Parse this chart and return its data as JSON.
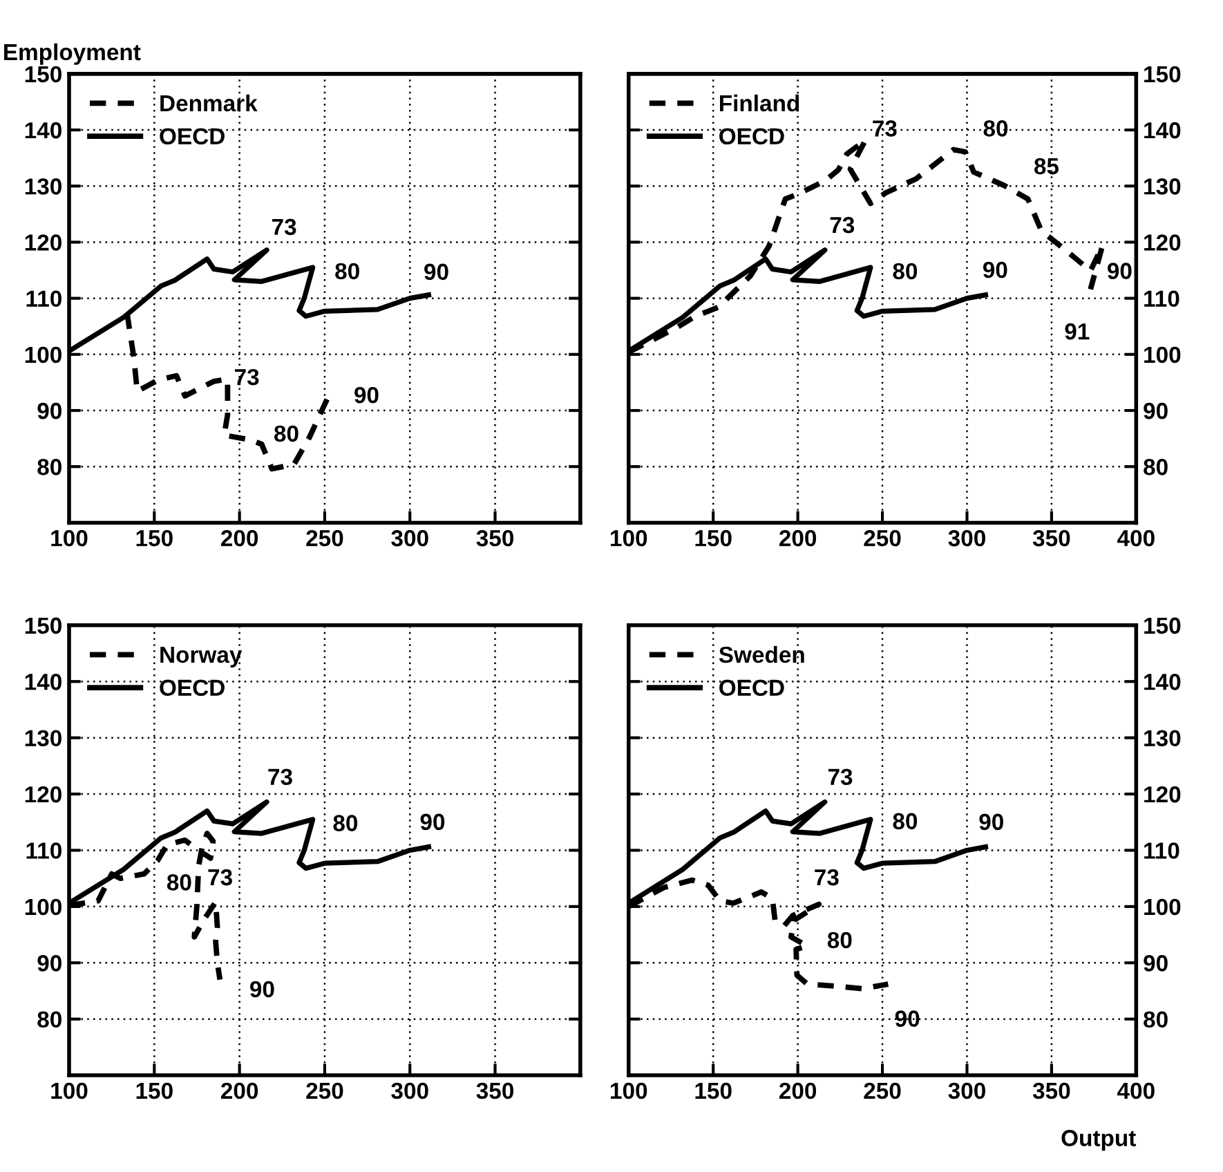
{
  "chart_data": [
    {
      "type": "line",
      "ylabel": "Employment",
      "xlim": [
        100,
        400
      ],
      "ylim": [
        70,
        150
      ],
      "xticks": [
        100,
        150,
        200,
        250,
        300,
        350
      ],
      "yticks": [
        80,
        90,
        100,
        110,
        120,
        130,
        140,
        150
      ],
      "grid": true,
      "legend": "top left",
      "series": [
        {
          "name": "Denmark",
          "color": "#000000",
          "line_style": "dashed",
          "x": [
            134,
            138,
            140,
            152,
            163,
            168,
            185,
            193,
            193,
            191,
            206,
            213,
            219,
            232,
            241,
            252
          ],
          "values": [
            107.4,
            99.4,
            93.4,
            95.4,
            96.2,
            92.6,
            95.2,
            95.6,
            89.2,
            85.6,
            84.8,
            84,
            79.6,
            80.4,
            85.2,
            92.4
          ]
        },
        {
          "name": "OECD",
          "color": "#000000",
          "line_style": "solid",
          "x": [
            100,
            132,
            154,
            162,
            181,
            185,
            196,
            216,
            197,
            213,
            237,
            243,
            238,
            235,
            239,
            250,
            281,
            300,
            311
          ],
          "values": [
            100.6,
            106.6,
            112.2,
            113.2,
            117,
            115.2,
            114.7,
            118.6,
            113.3,
            113,
            115,
            115.5,
            110,
            107.8,
            106.8,
            107.7,
            108,
            110,
            110.6
          ]
        }
      ],
      "annotations": [
        {
          "text": "73",
          "x": 216,
          "y": 118.6
        },
        {
          "text": "80",
          "x": 243,
          "y": 115.5
        },
        {
          "text": "90",
          "x": 311,
          "y": 110.6
        },
        {
          "text": "73",
          "x": 193,
          "y": 95.6
        },
        {
          "text": "80",
          "x": 232,
          "y": 80.4
        },
        {
          "text": "90",
          "x": 252,
          "y": 92.4
        }
      ]
    },
    {
      "type": "line",
      "xlim": [
        100,
        400
      ],
      "ylim": [
        70,
        150
      ],
      "xticks": [
        100,
        150,
        200,
        250,
        300,
        350,
        400
      ],
      "yticks": [
        80,
        90,
        100,
        110,
        120,
        130,
        140,
        150
      ],
      "grid": true,
      "legend": "top left",
      "series": [
        {
          "name": "Finland",
          "color": "#000000",
          "line_style": "dashed",
          "x": [
            100,
            128.6,
            139.5,
            153,
            172,
            183,
            192.6,
            199.5,
            216,
            224,
            229,
            240,
            231,
            243,
            252,
            270,
            292,
            299,
            304,
            322,
            336,
            344,
            357,
            373,
            380,
            373
          ],
          "values": [
            100.4,
            104.8,
            106.8,
            108.4,
            114,
            119.3,
            127.7,
            128.5,
            130.9,
            132.9,
            135.7,
            138.2,
            133,
            126.9,
            128.8,
            131.3,
            136.5,
            136.1,
            132.5,
            130.1,
            127.7,
            122,
            118.9,
            114.9,
            119.3,
            111.6
          ]
        },
        {
          "name": "OECD",
          "color": "#000000",
          "line_style": "solid",
          "x": [
            100,
            132,
            154,
            162,
            181,
            185,
            196,
            216,
            197,
            213,
            237,
            243,
            238,
            235,
            239,
            250,
            281,
            300,
            311
          ],
          "values": [
            100.6,
            106.6,
            112.2,
            113.2,
            117,
            115.2,
            114.7,
            118.6,
            113.3,
            113,
            115,
            115.5,
            110,
            107.8,
            106.8,
            107.7,
            108,
            110,
            110.6
          ]
        }
      ],
      "annotations": [
        {
          "text": "73",
          "x": 216,
          "y": 118.6
        },
        {
          "text": "80",
          "x": 243,
          "y": 115.5
        },
        {
          "text": "90",
          "x": 311,
          "y": 110.6
        },
        {
          "text": "73",
          "x": 240,
          "y": 138.2
        },
        {
          "text": "80",
          "x": 292,
          "y": 136.5
        },
        {
          "text": "85",
          "x": 322,
          "y": 130.1
        },
        {
          "text": "90",
          "x": 380,
          "y": 119.3
        },
        {
          "text": "91",
          "x": 373,
          "y": 111.6
        }
      ]
    },
    {
      "type": "line",
      "xlim": [
        100,
        400
      ],
      "ylim": [
        70,
        150
      ],
      "xticks": [
        100,
        150,
        200,
        250,
        300,
        350
      ],
      "yticks": [
        80,
        90,
        100,
        110,
        120,
        130,
        140,
        150
      ],
      "grid": true,
      "legend": "top left",
      "series": [
        {
          "name": "Norway",
          "color": "#000000",
          "line_style": "dashed",
          "x": [
            100,
            117,
            125,
            130,
            144,
            152,
            157.5,
            168,
            176,
            183,
            184.5,
            181,
            178,
            176,
            175,
            173.5,
            179,
            186,
            187,
            186,
            187,
            188.5
          ],
          "values": [
            100.2,
            101,
            105.8,
            105,
            105.8,
            108.2,
            111,
            111.8,
            110,
            108.6,
            111.6,
            113,
            110.4,
            107.2,
            100.2,
            94.6,
            97.6,
            100.8,
            96.4,
            93.8,
            90,
            87
          ]
        },
        {
          "name": "OECD",
          "color": "#000000",
          "line_style": "solid",
          "x": [
            100,
            132,
            154,
            162,
            181,
            185,
            196,
            216,
            197,
            213,
            237,
            243,
            238,
            235,
            239,
            250,
            281,
            300,
            311
          ],
          "values": [
            100.6,
            106.6,
            112.2,
            113.2,
            117,
            115.2,
            114.7,
            118.6,
            113.3,
            113,
            115,
            115.5,
            110,
            107.8,
            106.8,
            107.7,
            108,
            110,
            110.6
          ]
        }
      ],
      "annotations": [
        {
          "text": "73",
          "x": 216,
          "y": 118.6
        },
        {
          "text": "80",
          "x": 243,
          "y": 115.5
        },
        {
          "text": "90",
          "x": 311,
          "y": 110.6
        },
        {
          "text": "80",
          "x": 168,
          "y": 111.8
        },
        {
          "text": "73",
          "x": 183,
          "y": 108.6
        },
        {
          "text": "90",
          "x": 188.5,
          "y": 87
        }
      ]
    },
    {
      "type": "line",
      "xlabel": "Output",
      "xlim": [
        100,
        400
      ],
      "ylim": [
        70,
        150
      ],
      "xticks": [
        100,
        150,
        200,
        250,
        300,
        350,
        400
      ],
      "yticks": [
        80,
        90,
        100,
        110,
        120,
        130,
        140,
        150
      ],
      "grid": true,
      "legend": "top left",
      "series": [
        {
          "name": "Sweden",
          "color": "#000000",
          "line_style": "dashed",
          "x": [
            100,
            121,
            137.6,
            147,
            154,
            162,
            178.5,
            185,
            186.6,
            192,
            197,
            212.5,
            198,
            196,
            205.5,
            199,
            199.5,
            205.7,
            225,
            238,
            253.4
          ],
          "values": [
            100,
            103.4,
            104.7,
            103.8,
            101,
            100.6,
            102.6,
            101.4,
            97.4,
            96.6,
            98.4,
            100.4,
            97.6,
            94.6,
            93,
            92.4,
            87.8,
            86.2,
            85.8,
            85.4,
            86.2
          ]
        },
        {
          "name": "OECD",
          "color": "#000000",
          "line_style": "solid",
          "x": [
            100,
            132,
            154,
            162,
            181,
            185,
            196,
            216,
            197,
            213,
            237,
            243,
            238,
            235,
            239,
            250,
            281,
            300,
            311
          ],
          "values": [
            100.6,
            106.6,
            112.2,
            113.2,
            117,
            115.2,
            114.7,
            118.6,
            113.3,
            113,
            115,
            115.5,
            110,
            107.8,
            106.8,
            107.7,
            108,
            110,
            110.6
          ]
        }
      ],
      "annotations": [
        {
          "text": "73",
          "x": 216,
          "y": 118.6
        },
        {
          "text": "80",
          "x": 243,
          "y": 115.5
        },
        {
          "text": "90",
          "x": 311,
          "y": 110.6
        },
        {
          "text": "73",
          "x": 212.5,
          "y": 100.4
        },
        {
          "text": "80",
          "x": 205.5,
          "y": 93
        },
        {
          "text": "90",
          "x": 253.4,
          "y": 86.2
        }
      ]
    }
  ]
}
